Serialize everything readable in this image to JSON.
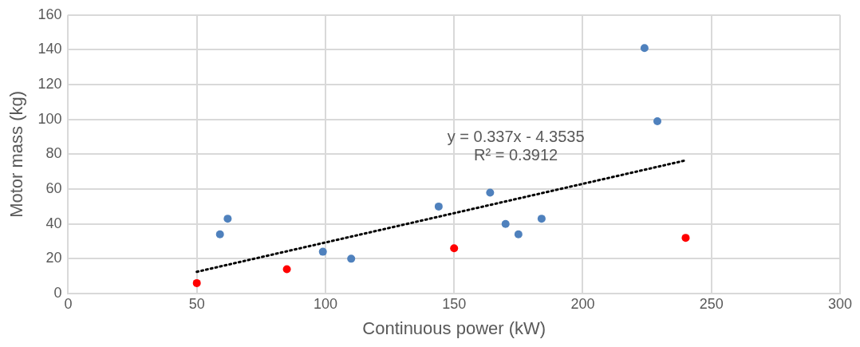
{
  "chart_data": {
    "type": "scatter",
    "xlabel": "Continuous power (kW)",
    "ylabel": "Motor mass (kg)",
    "xlim": [
      0,
      300
    ],
    "xticks": [
      0,
      50,
      100,
      150,
      200,
      250,
      300
    ],
    "ylim": [
      0,
      160
    ],
    "yticks": [
      0,
      20,
      40,
      60,
      80,
      100,
      120,
      140,
      160
    ],
    "grid": true,
    "legend": false,
    "marker": "circle",
    "series": [
      {
        "color": "#4f81bd",
        "x": [
          59,
          62,
          99,
          110,
          144,
          164,
          170,
          175,
          184,
          224,
          229
        ],
        "values": [
          34,
          43,
          24,
          20,
          50,
          58,
          40,
          34,
          43,
          141,
          99
        ]
      },
      {
        "color": "#ff0000",
        "x": [
          50,
          85,
          150,
          240
        ],
        "values": [
          6,
          14,
          26,
          32
        ]
      },
      {
        "type": "line",
        "color": "#000000",
        "line_style": "dotted",
        "marker": "none",
        "x": [
          50,
          240
        ],
        "values": [
          12.5,
          76.5
        ]
      }
    ],
    "annotations": [
      "y = 0.337x - 4.3535",
      "R² = 0.3912"
    ]
  }
}
